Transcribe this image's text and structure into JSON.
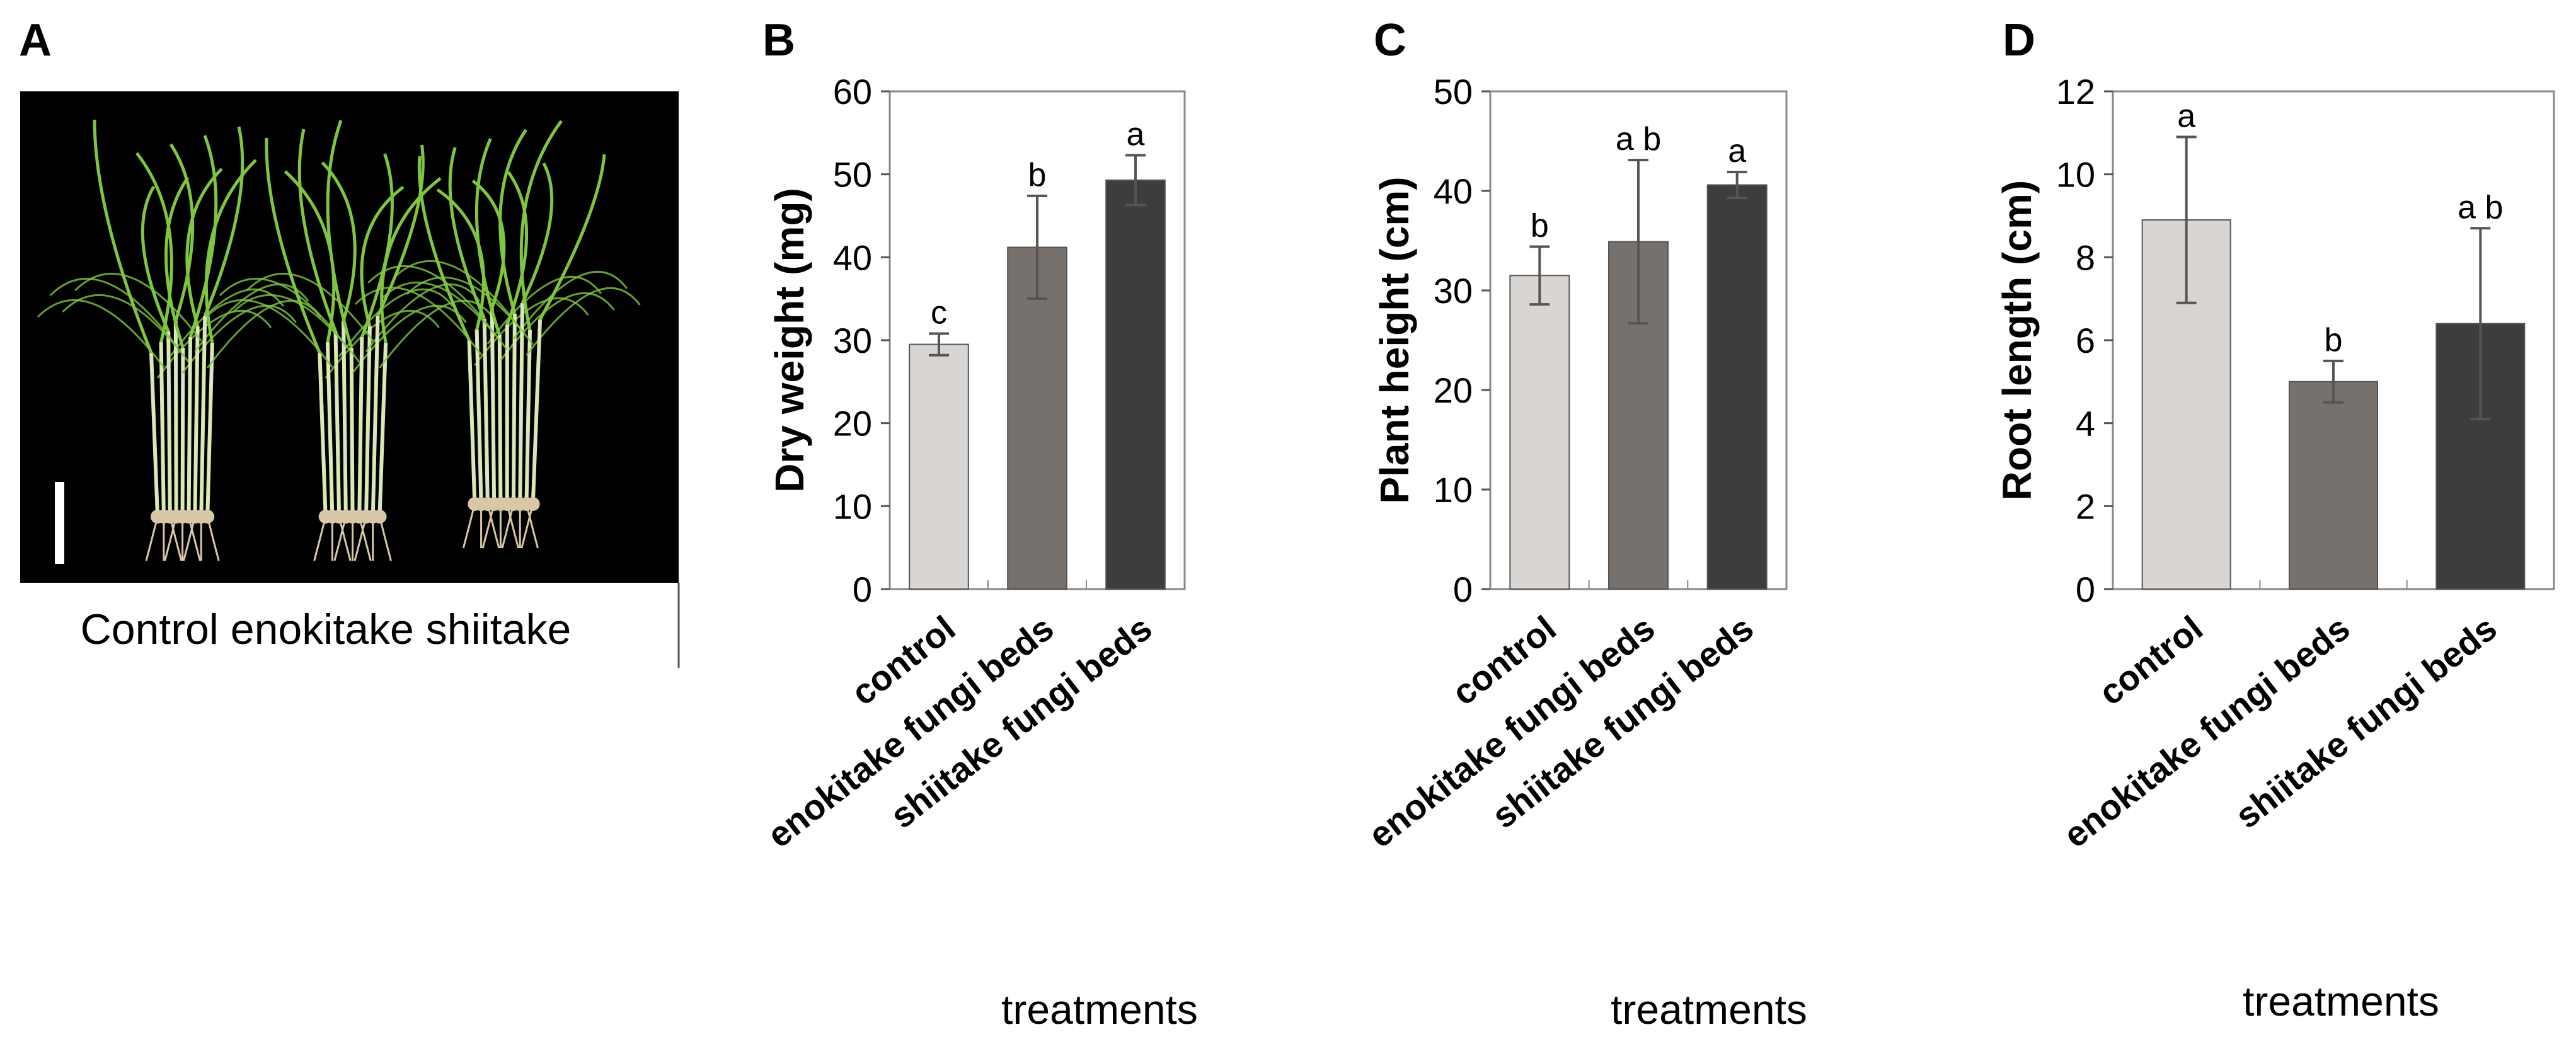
{
  "panels": {
    "a": {
      "letter": "A",
      "caption": "Control enokitake shiitake",
      "groups": [
        "Control",
        "enokitake",
        "shiitake"
      ]
    }
  },
  "colors": {
    "control": "#d8d5d2",
    "enokitake": "#77716d",
    "shiitake": "#3d3d3d",
    "error": "#555555",
    "axis": "#555555",
    "frame": "#888888",
    "photo_bg": "#000000",
    "leaf": "#7fc540",
    "stem": "#d9e8b6",
    "root": "#d8c8a8"
  },
  "chart_data": [
    {
      "panel": "B",
      "type": "bar",
      "categories": [
        "control",
        "enokitake fungi beds",
        "shiitake fungi beds"
      ],
      "values": [
        29.5,
        41.2,
        49.3
      ],
      "errors": [
        1.3,
        6.2,
        3.0
      ],
      "significance": [
        "c",
        "b",
        "a"
      ],
      "title": "",
      "xlabel": "treatments",
      "ylabel": "Dry weight (mg)",
      "ylim": [
        0,
        60
      ],
      "yticks": [
        0,
        10,
        20,
        30,
        40,
        50,
        60
      ]
    },
    {
      "panel": "C",
      "type": "bar",
      "categories": [
        "control",
        "enokitake fungi beds",
        "shiitake fungi beds"
      ],
      "values": [
        31.5,
        34.9,
        40.6
      ],
      "errors": [
        2.9,
        8.2,
        1.3
      ],
      "significance": [
        "b",
        "a b",
        "a"
      ],
      "title": "",
      "xlabel": "treatments",
      "ylabel": "Plant height (cm)",
      "ylim": [
        0,
        50
      ],
      "yticks": [
        0,
        10,
        20,
        30,
        40,
        50
      ]
    },
    {
      "panel": "D",
      "type": "bar",
      "categories": [
        "control",
        "enokitake fungi beds",
        "shiitake fungi beds"
      ],
      "values": [
        8.9,
        5.0,
        6.4
      ],
      "errors": [
        2.0,
        0.5,
        2.3
      ],
      "significance": [
        "a",
        "b",
        "a b"
      ],
      "title": "",
      "xlabel": "treatments",
      "ylabel": "Root length  (cm)",
      "ylim": [
        0,
        12
      ],
      "yticks": [
        0,
        2,
        4,
        6,
        8,
        10,
        12
      ]
    }
  ]
}
